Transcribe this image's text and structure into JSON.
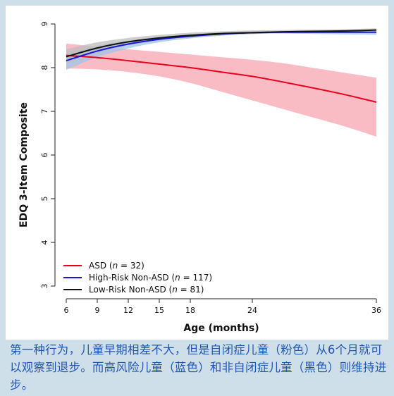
{
  "chart_data": {
    "type": "line",
    "title": "",
    "xlabel": "Age (months)",
    "ylabel": "EDQ 3-Item Composite",
    "xlim": [
      6,
      36
    ],
    "ylim": [
      3,
      9
    ],
    "x_ticks": [
      6,
      9,
      12,
      15,
      18,
      24,
      36
    ],
    "y_ticks": [
      3,
      4,
      5,
      6,
      7,
      8,
      9
    ],
    "grid": false,
    "legend_position": "bottom-left",
    "x": [
      6,
      9,
      12,
      15,
      18,
      21,
      24,
      27,
      30,
      33,
      36
    ],
    "series": [
      {
        "name": "ASD (n = 32)",
        "color": "#e8001c",
        "band_color": "#f7a5b1",
        "values": [
          8.28,
          8.23,
          8.16,
          8.08,
          8.0,
          7.9,
          7.8,
          7.67,
          7.53,
          7.38,
          7.21
        ],
        "lower": [
          7.98,
          7.96,
          7.9,
          7.8,
          7.65,
          7.45,
          7.25,
          7.05,
          6.85,
          6.65,
          6.42
        ],
        "upper": [
          8.55,
          8.48,
          8.42,
          8.36,
          8.3,
          8.24,
          8.18,
          8.1,
          7.99,
          7.88,
          7.77
        ]
      },
      {
        "name": "High-Risk Non-ASD (n = 117)",
        "color": "#1616e0",
        "band_color": "#9dc6e6",
        "values": [
          8.16,
          8.38,
          8.54,
          8.65,
          8.72,
          8.77,
          8.8,
          8.81,
          8.81,
          8.81,
          8.81
        ],
        "lower": [
          7.95,
          8.24,
          8.44,
          8.58,
          8.67,
          8.73,
          8.77,
          8.78,
          8.77,
          8.76,
          8.75
        ],
        "upper": [
          8.32,
          8.5,
          8.62,
          8.71,
          8.77,
          8.81,
          8.83,
          8.84,
          8.85,
          8.86,
          8.86
        ]
      },
      {
        "name": "Low-Risk Non-ASD (n = 81)",
        "color": "#111111",
        "band_color": "#bdbdbd",
        "values": [
          8.25,
          8.45,
          8.59,
          8.68,
          8.74,
          8.78,
          8.8,
          8.82,
          8.83,
          8.84,
          8.86
        ],
        "lower": [
          8.1,
          8.34,
          8.51,
          8.62,
          8.69,
          8.74,
          8.77,
          8.79,
          8.8,
          8.81,
          8.82
        ],
        "upper": [
          8.42,
          8.58,
          8.68,
          8.75,
          8.8,
          8.83,
          8.85,
          8.86,
          8.87,
          8.88,
          8.9
        ]
      }
    ],
    "legend": [
      {
        "prefix": "ASD (",
        "italic": "n",
        "suffix": " = 32)"
      },
      {
        "prefix": "High-Risk Non-ASD (",
        "italic": "n",
        "suffix": " = 117)"
      },
      {
        "prefix": "Low-Risk Non-ASD (",
        "italic": "n",
        "suffix": " = 81)"
      }
    ]
  },
  "caption": "第一种行为，儿童早期相差不大，但是自闭症儿童（粉色）从6个月就可以观察到退步。而高风险儿童（蓝色）和非自闭症儿童（黑色）则维持进步。"
}
